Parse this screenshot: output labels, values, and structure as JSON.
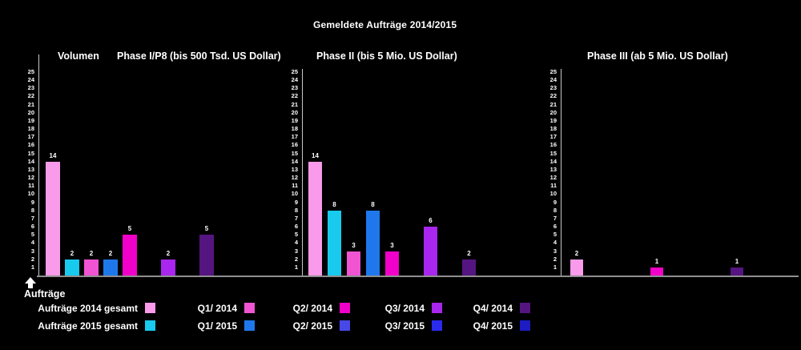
{
  "title": "Gemeldete Aufträge 2014/2015",
  "volumen_label": "Volumen",
  "y_axis_annotation": "Aufträge",
  "chart_data": {
    "type": "bar",
    "title": "Gemeldete Aufträge 2014/2015",
    "xlabel": "",
    "ylabel": "Aufträge",
    "ylim": [
      0,
      25
    ],
    "y_tick_step": 1,
    "grid": false,
    "legend_position": "bottom",
    "categories": [
      "Aufträge 2014 gesamt",
      "Aufträge 2015 gesamt",
      "Q1/ 2014",
      "Q1/ 2015",
      "Q2/ 2014",
      "Q2/ 2015",
      "Q3/ 2014",
      "Q3/ 2015",
      "Q4/ 2014",
      "Q4/ 2015"
    ],
    "series_colors": [
      "#FA9AEA",
      "#18CAEE",
      "#F054D2",
      "#1E78EC",
      "#F000C8",
      "#4848E8",
      "#A826EE",
      "#2B2BEE",
      "#551580",
      "#1C1CC2"
    ],
    "panels": [
      {
        "title": "Phase I/P8 (bis 500 Tsd. US Dollar)",
        "values": [
          14,
          2,
          2,
          2,
          5,
          null,
          2,
          null,
          5,
          null
        ]
      },
      {
        "title": "Phase II (bis 5 Mio. US Dollar)",
        "values": [
          14,
          8,
          3,
          8,
          3,
          null,
          6,
          null,
          2,
          null
        ]
      },
      {
        "title": "Phase III (ab 5 Mio. US Dollar)",
        "values": [
          2,
          null,
          null,
          null,
          1,
          null,
          null,
          null,
          1,
          null
        ]
      }
    ]
  }
}
